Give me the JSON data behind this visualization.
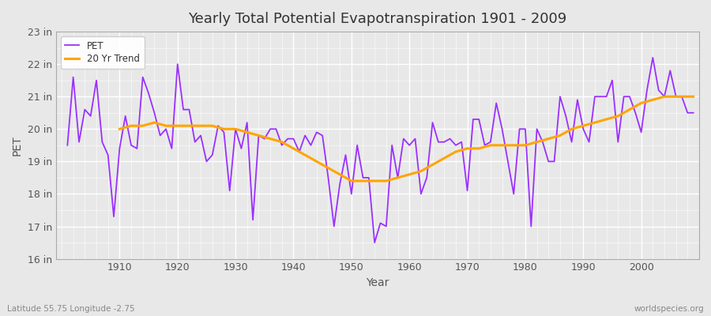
{
  "title": "Yearly Total Potential Evapotranspiration 1901 - 2009",
  "xlabel": "Year",
  "ylabel": "PET",
  "subtitle": "Latitude 55.75 Longitude -2.75",
  "watermark": "worldspecies.org",
  "pet_color": "#9B30FF",
  "trend_color": "#FFA500",
  "bg_color": "#E8E8E8",
  "plot_bg_color": "#E8E8E8",
  "ylim": [
    16,
    23
  ],
  "yticks": [
    16,
    17,
    18,
    19,
    20,
    21,
    22,
    23
  ],
  "ytick_labels": [
    "16 in",
    "17 in",
    "18 in",
    "19 in",
    "20 in",
    "21 in",
    "22 in",
    "23 in"
  ],
  "years": [
    1901,
    1902,
    1903,
    1904,
    1905,
    1906,
    1907,
    1908,
    1909,
    1910,
    1911,
    1912,
    1913,
    1914,
    1915,
    1916,
    1917,
    1918,
    1919,
    1920,
    1921,
    1922,
    1923,
    1924,
    1925,
    1926,
    1927,
    1928,
    1929,
    1930,
    1931,
    1932,
    1933,
    1934,
    1935,
    1936,
    1937,
    1938,
    1939,
    1940,
    1941,
    1942,
    1943,
    1944,
    1945,
    1946,
    1947,
    1948,
    1949,
    1950,
    1951,
    1952,
    1953,
    1954,
    1955,
    1956,
    1957,
    1958,
    1959,
    1960,
    1961,
    1962,
    1963,
    1964,
    1965,
    1966,
    1967,
    1968,
    1969,
    1970,
    1971,
    1972,
    1973,
    1974,
    1975,
    1976,
    1977,
    1978,
    1979,
    1980,
    1981,
    1982,
    1983,
    1984,
    1985,
    1986,
    1987,
    1988,
    1989,
    1990,
    1991,
    1992,
    1993,
    1994,
    1995,
    1996,
    1997,
    1998,
    1999,
    2000,
    2001,
    2002,
    2003,
    2004,
    2005,
    2006,
    2007,
    2008,
    2009
  ],
  "pet_values": [
    19.5,
    21.6,
    19.6,
    20.6,
    20.4,
    21.5,
    19.6,
    19.2,
    17.3,
    19.4,
    20.4,
    19.5,
    19.4,
    21.6,
    21.1,
    20.5,
    19.8,
    20.0,
    19.4,
    22.0,
    20.6,
    20.6,
    19.6,
    19.8,
    19.0,
    19.2,
    20.1,
    19.9,
    18.1,
    20.0,
    19.4,
    20.2,
    17.2,
    19.8,
    19.7,
    20.0,
    20.0,
    19.5,
    19.7,
    19.7,
    19.3,
    19.8,
    19.5,
    19.9,
    19.8,
    18.5,
    17.0,
    18.3,
    19.2,
    18.0,
    19.5,
    18.5,
    18.5,
    16.5,
    17.1,
    17.0,
    19.5,
    18.5,
    19.7,
    19.5,
    19.7,
    18.0,
    18.5,
    20.2,
    19.6,
    19.6,
    19.7,
    19.5,
    19.6,
    18.1,
    20.3,
    20.3,
    19.5,
    19.6,
    20.8,
    20.0,
    19.0,
    18.0,
    20.0,
    20.0,
    17.0,
    20.0,
    19.6,
    19.0,
    19.0,
    21.0,
    20.4,
    19.6,
    20.9,
    20.0,
    19.6,
    21.0,
    21.0,
    21.0,
    21.5,
    19.6,
    21.0,
    21.0,
    20.5,
    19.9,
    21.2,
    22.2,
    21.2,
    21.0,
    21.8,
    21.0,
    21.0,
    20.5,
    20.5
  ],
  "trend_years": [
    1910,
    1912,
    1914,
    1916,
    1918,
    1920,
    1922,
    1924,
    1926,
    1928,
    1930,
    1932,
    1934,
    1936,
    1938,
    1940,
    1942,
    1944,
    1946,
    1948,
    1950,
    1952,
    1954,
    1956,
    1958,
    1960,
    1962,
    1964,
    1966,
    1968,
    1970,
    1972,
    1974,
    1976,
    1978,
    1980,
    1982,
    1984,
    1986,
    1988,
    1990,
    1992,
    1994,
    1996,
    1998,
    2000,
    2002,
    2004,
    2006,
    2008,
    2009
  ],
  "trend_values": [
    20.0,
    20.1,
    20.1,
    20.2,
    20.1,
    20.1,
    20.1,
    20.1,
    20.1,
    20.0,
    20.0,
    19.9,
    19.8,
    19.7,
    19.6,
    19.4,
    19.2,
    19.0,
    18.8,
    18.6,
    18.4,
    18.4,
    18.4,
    18.4,
    18.5,
    18.6,
    18.7,
    18.9,
    19.1,
    19.3,
    19.4,
    19.4,
    19.5,
    19.5,
    19.5,
    19.5,
    19.6,
    19.7,
    19.8,
    20.0,
    20.1,
    20.2,
    20.3,
    20.4,
    20.6,
    20.8,
    20.9,
    21.0,
    21.0,
    21.0,
    21.0
  ]
}
